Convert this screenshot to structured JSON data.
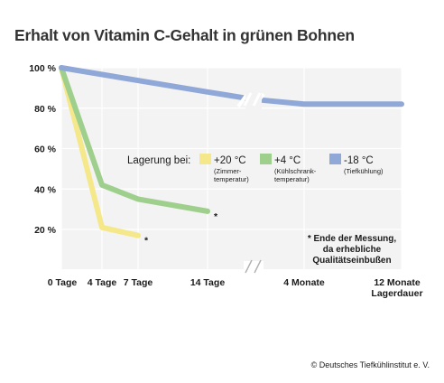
{
  "chart_data": {
    "type": "line",
    "title": "Erhalt von Vitamin C-Gehalt in grünen Bohnen",
    "y_ticks": [
      "100 %",
      "80 %",
      "60 %",
      "40 %",
      "20 %"
    ],
    "y_values": [
      100,
      80,
      60,
      40,
      20
    ],
    "ylim": [
      0,
      100
    ],
    "x_ticks": [
      "0 Tage",
      "4 Tage",
      "7 Tage",
      "14 Tage",
      "4 Monate",
      "12 Monate"
    ],
    "x_axis_break": true,
    "xlabel": "Lagerdauer",
    "grid": true,
    "series": [
      {
        "name": "+20 °C",
        "color": "#f5e88a",
        "points": [
          [
            "0 Tage",
            100
          ],
          [
            "4 Tage",
            21
          ],
          [
            "7 Tage",
            17
          ]
        ],
        "marker": "*"
      },
      {
        "name": "+4 °C",
        "color": "#9fcf8c",
        "points": [
          [
            "0 Tage",
            100
          ],
          [
            "4 Tage",
            42
          ],
          [
            "7 Tage",
            35
          ],
          [
            "14 Tage",
            29
          ]
        ],
        "marker": "*"
      },
      {
        "name": "-18 °C",
        "color": "#8fa8d8",
        "points": [
          [
            "0 Tage",
            100
          ],
          [
            "14 Tage",
            88
          ],
          [
            "4 Monate",
            82
          ],
          [
            "12 Monate",
            82
          ]
        ]
      }
    ],
    "legend": {
      "label": "Lagerung bei:",
      "placement": "center",
      "items": [
        {
          "name": "+20 °C",
          "sub": [
            "(Zimmer-",
            "temperatur)"
          ],
          "color": "#f5e88a"
        },
        {
          "name": "+4 °C",
          "sub": [
            "(Kühlschrank-",
            "temperatur)"
          ],
          "color": "#9fcf8c"
        },
        {
          "name": "-18 °C",
          "sub": [
            "(Tiefkühlung)"
          ],
          "color": "#8fa8d8"
        }
      ]
    },
    "annotation": [
      "* Ende der Messung,",
      "da erhebliche",
      "Qualitätseinbußen"
    ]
  },
  "copyright": "© Deutsches Tiefkühlinstitut e. V."
}
